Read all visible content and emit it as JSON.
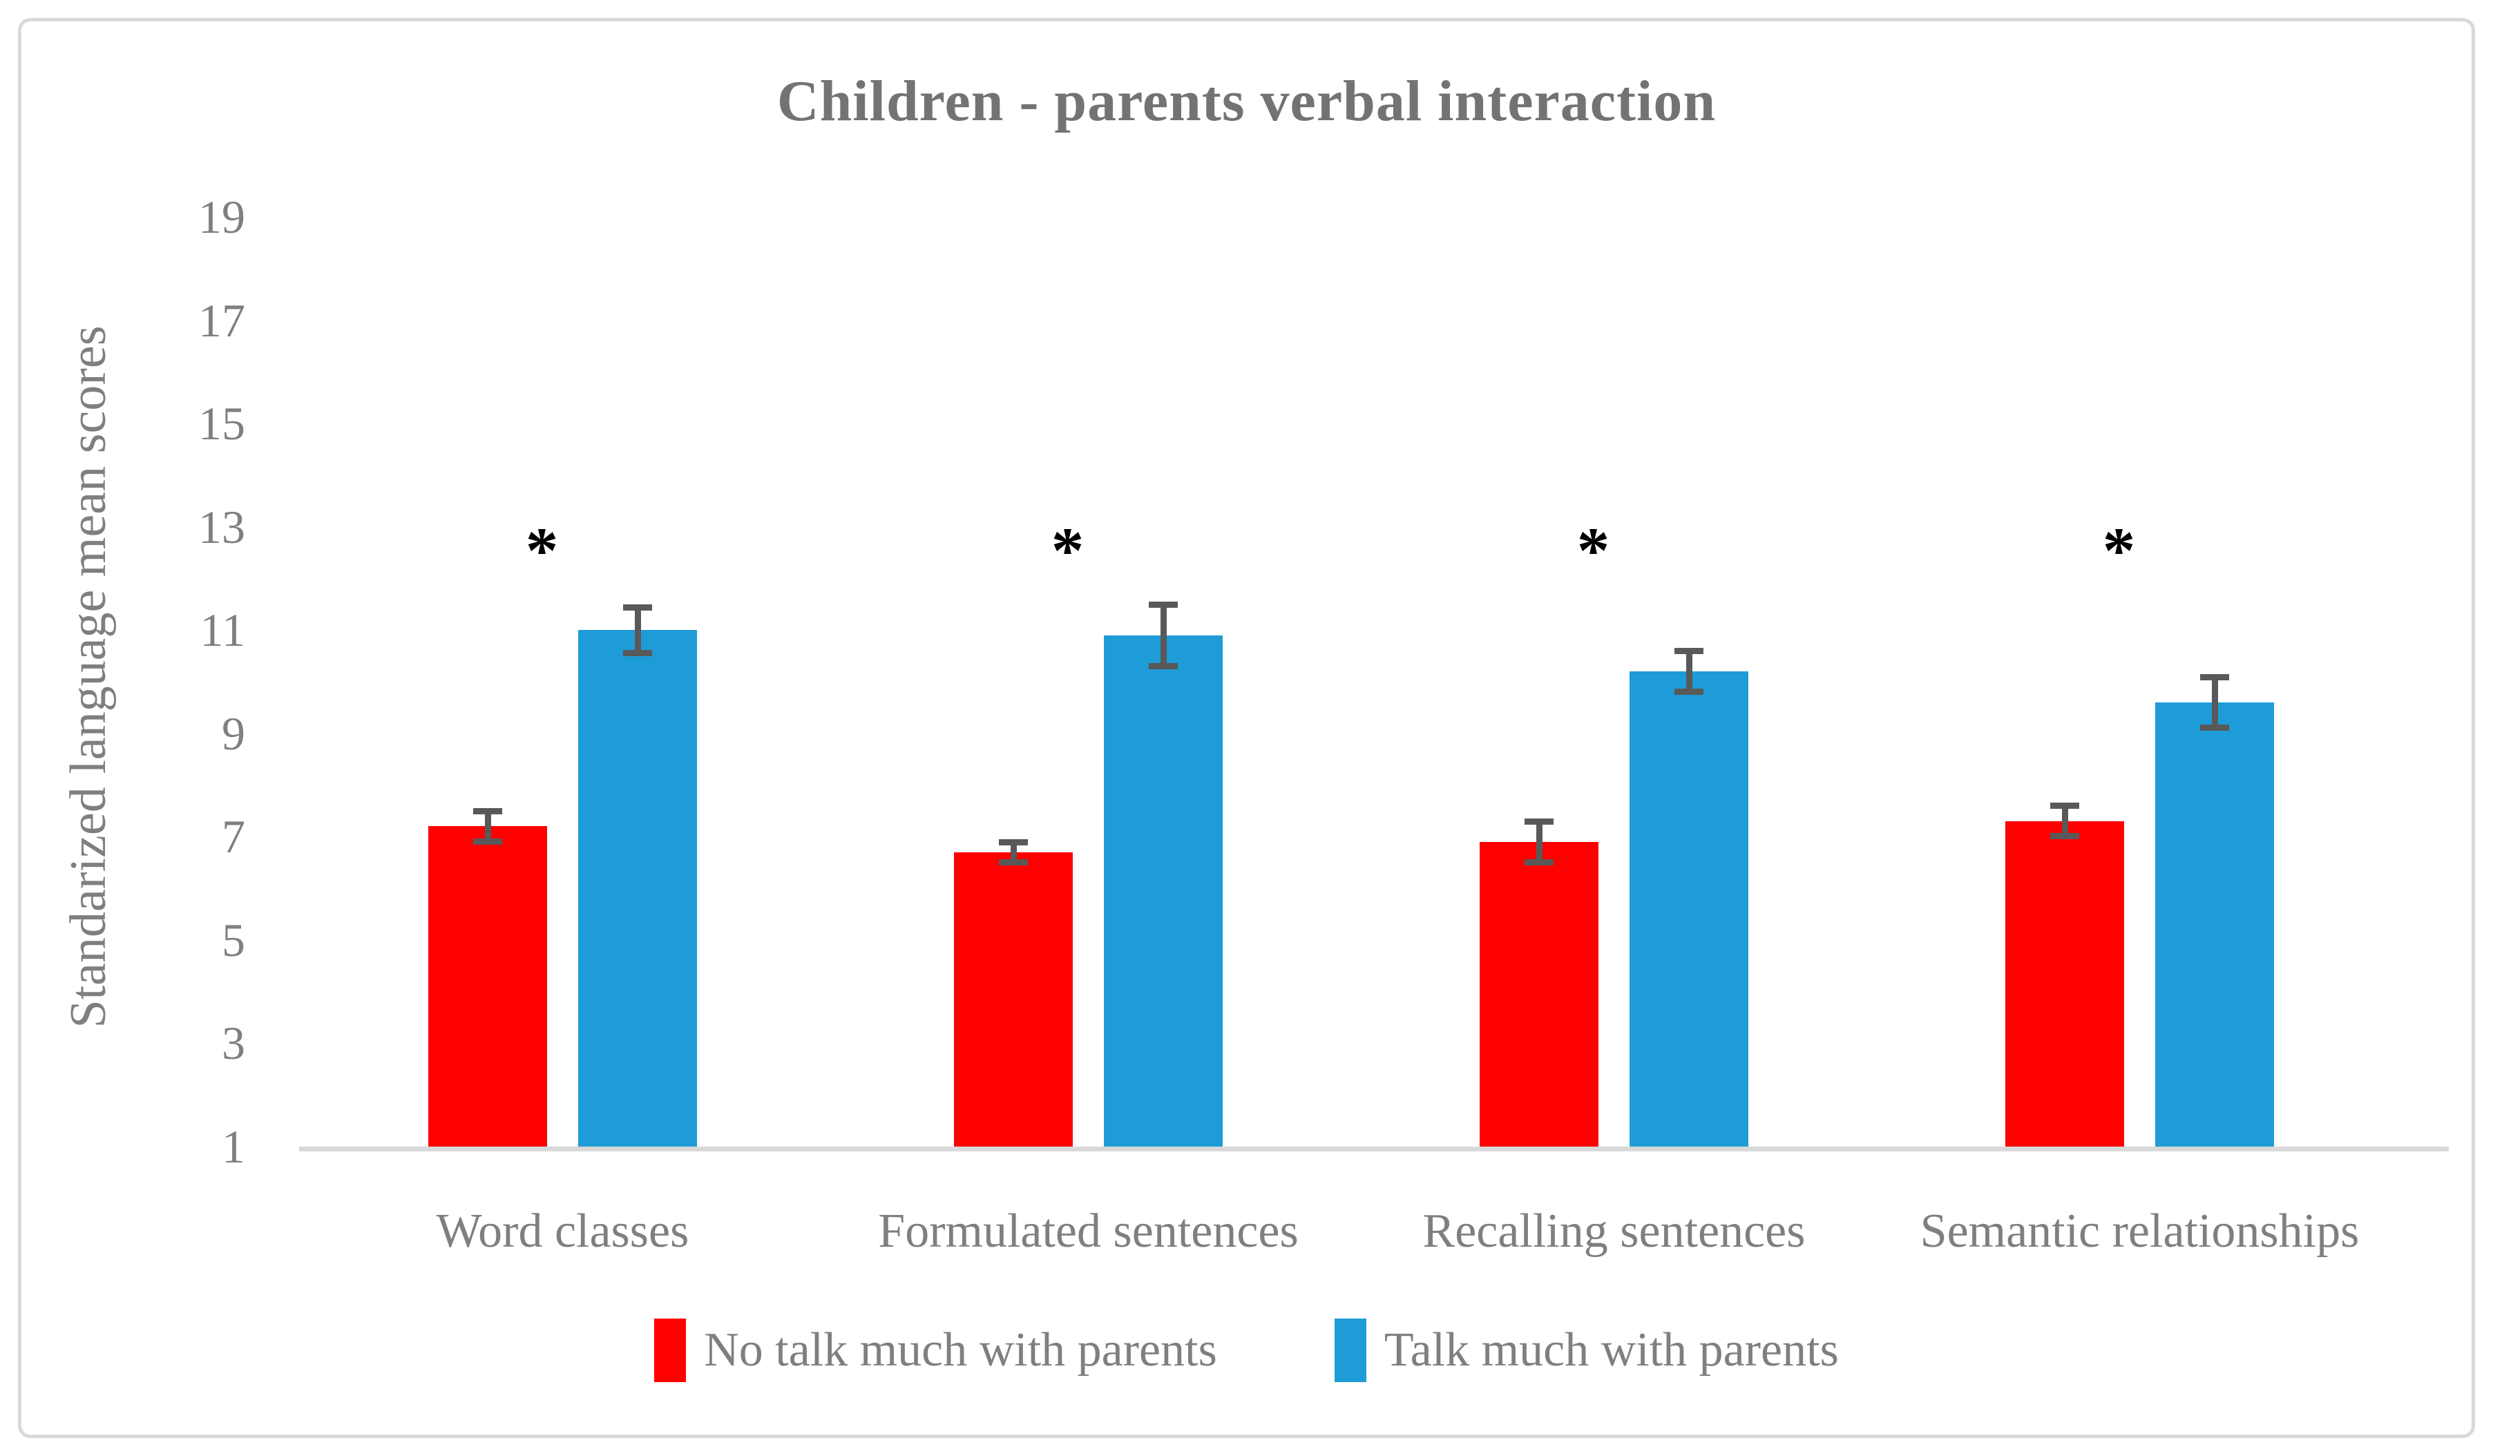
{
  "figure": {
    "title": "Children - parents verbal interaction"
  },
  "chart_data": {
    "type": "bar",
    "title": "Children - parents verbal interaction",
    "xlabel": "",
    "ylabel": "Standarized language mean scores",
    "ylim": [
      1,
      19
    ],
    "y_ticks": [
      19,
      17,
      15,
      13,
      11,
      9,
      7,
      5,
      3,
      1
    ],
    "grid": false,
    "legend_position": "bottom",
    "categories": [
      "Word classes",
      "Formulated sentences",
      "Recalling sentences",
      "Semantic relationships"
    ],
    "series": [
      {
        "name": "No talk much with parents",
        "color": "#FF0000",
        "values": [
          7.2,
          6.7,
          6.9,
          7.3
        ],
        "errors": [
          0.3,
          0.2,
          0.4,
          0.3
        ]
      },
      {
        "name": "Talk much with parents",
        "color": "#1E9CD7",
        "values": [
          11.0,
          10.9,
          10.2,
          9.6
        ],
        "errors": [
          0.45,
          0.6,
          0.4,
          0.5
        ]
      }
    ],
    "significance_markers": [
      "*",
      "*",
      "*",
      "*"
    ],
    "error_bar_color": "#595959",
    "axis_line_color": "#D9D9D9",
    "text_color": "#7F7F7F",
    "title_color": "#737373"
  }
}
